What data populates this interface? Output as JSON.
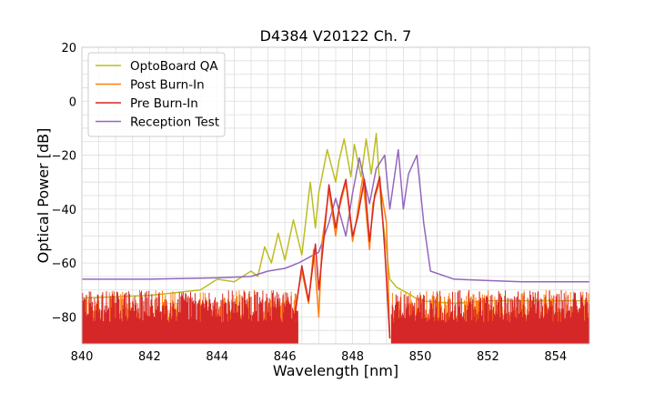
{
  "chart_data": {
    "type": "line",
    "title": "D4384 V20122 Ch. 7",
    "xlabel": "Wavelength [nm]",
    "ylabel": "Optical Power [dB]",
    "xlim": [
      840,
      855
    ],
    "ylim": [
      -90,
      20
    ],
    "xticks": [
      840,
      842,
      844,
      846,
      848,
      850,
      852,
      854
    ],
    "yticks": [
      20,
      0,
      -20,
      -40,
      -60,
      -80
    ],
    "xtick_labels": [
      "840",
      "842",
      "844",
      "846",
      "848",
      "850",
      "852",
      "854"
    ],
    "ytick_labels": [
      "20",
      "0",
      "−20",
      "−40",
      "−60",
      "−80"
    ],
    "grid": true,
    "legend_position": "top-left",
    "series": [
      {
        "name": "OptoBoard QA",
        "color": "#bcbd22",
        "x": [
          840,
          842,
          843.5,
          844,
          844.5,
          845.0,
          845.2,
          845.4,
          845.6,
          845.8,
          846.0,
          846.25,
          846.5,
          846.75,
          846.9,
          847.0,
          847.25,
          847.5,
          847.6,
          847.75,
          847.95,
          848.05,
          848.25,
          848.4,
          848.55,
          848.7,
          848.85,
          849.0,
          849.1,
          849.3,
          849.6,
          850,
          851,
          852,
          854,
          855
        ],
        "y": [
          -73,
          -72,
          -70,
          -66,
          -67,
          -63,
          -65,
          -54,
          -60,
          -49,
          -59,
          -44,
          -57,
          -30,
          -47,
          -34,
          -18,
          -30,
          -22,
          -14,
          -28,
          -16,
          -28,
          -14,
          -27,
          -12,
          -40,
          -55,
          -66,
          -69,
          -71,
          -74,
          -75,
          -74,
          -74,
          -74
        ]
      },
      {
        "name": "Post Burn-In",
        "color": "#ff7f0e",
        "x": [
          846.2,
          846.4,
          846.5,
          846.7,
          846.85,
          847.0,
          847.1,
          847.3,
          847.5,
          847.6,
          847.8,
          848.0,
          848.1,
          848.3,
          848.5,
          848.6,
          848.8,
          849.0,
          849.1
        ],
        "y": [
          -88,
          -70,
          -63,
          -75,
          -55,
          -80,
          -52,
          -33,
          -50,
          -40,
          -30,
          -52,
          -45,
          -28,
          -55,
          -38,
          -30,
          -45,
          -88
        ]
      },
      {
        "name": "Pre Burn-In",
        "color": "#d62728",
        "x": [
          846.2,
          846.4,
          846.5,
          846.7,
          846.9,
          847.0,
          847.15,
          847.3,
          847.5,
          847.65,
          847.8,
          848.0,
          848.15,
          848.35,
          848.5,
          848.65,
          848.8,
          848.95,
          849.1
        ],
        "y": [
          -88,
          -70,
          -61,
          -74,
          -53,
          -70,
          -51,
          -31,
          -47,
          -36,
          -29,
          -50,
          -43,
          -29,
          -52,
          -35,
          -28,
          -55,
          -88
        ]
      },
      {
        "name": "Reception Test",
        "color": "#9467bd",
        "x": [
          840,
          842,
          844,
          845,
          845.5,
          846.0,
          846.4,
          846.7,
          847.0,
          847.3,
          847.5,
          847.8,
          848.0,
          848.2,
          848.5,
          848.7,
          848.95,
          849.1,
          849.35,
          849.5,
          849.65,
          849.9,
          850.1,
          850.3,
          851,
          852,
          853,
          854,
          855
        ],
        "y": [
          -66,
          -66,
          -65.5,
          -65,
          -63,
          -62,
          -60,
          -58,
          -56,
          -45,
          -36,
          -50,
          -34,
          -21,
          -38,
          -25,
          -20,
          -40,
          -18,
          -40,
          -27,
          -20,
          -45,
          -63,
          -66,
          -66.5,
          -67,
          -67,
          -67
        ]
      }
    ],
    "noise": {
      "x_ranges": [
        [
          840,
          846.4
        ],
        [
          849.15,
          855
        ]
      ],
      "floor": -90,
      "top_range": [
        -82,
        -70
      ]
    }
  }
}
